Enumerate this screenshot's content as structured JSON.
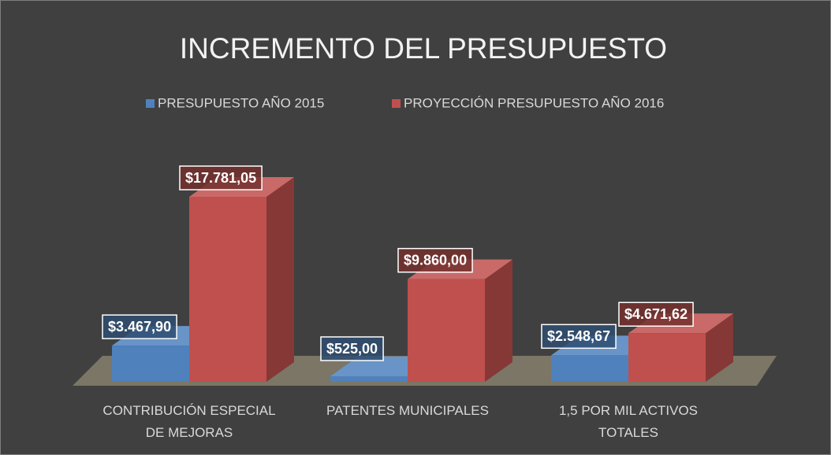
{
  "chart_data": {
    "type": "bar3d",
    "title": "INCREMENTO DEL PRESUPUESTO",
    "categories": [
      "CONTRIBUCIÓN ESPECIAL DE MEJORAS",
      "PATENTES MUNICIPALES",
      "1,5 POR MIL ACTIVOS TOTALES"
    ],
    "series": [
      {
        "name": "PRESUPUESTO AÑO 2015",
        "color": "#4f81bd",
        "values": [
          3467.9,
          525.0,
          2548.67
        ],
        "value_labels": [
          "$3.467,90",
          "$525,00",
          "$2.548,67"
        ]
      },
      {
        "name": "PROYECCIÓN PRESUPUESTO AÑO 2016",
        "color": "#c0504d",
        "values": [
          17781.05,
          9860.0,
          4671.62
        ],
        "value_labels": [
          "$17.781,05",
          "$9.860,00",
          "$4.671,62"
        ]
      }
    ],
    "legend": "top"
  }
}
